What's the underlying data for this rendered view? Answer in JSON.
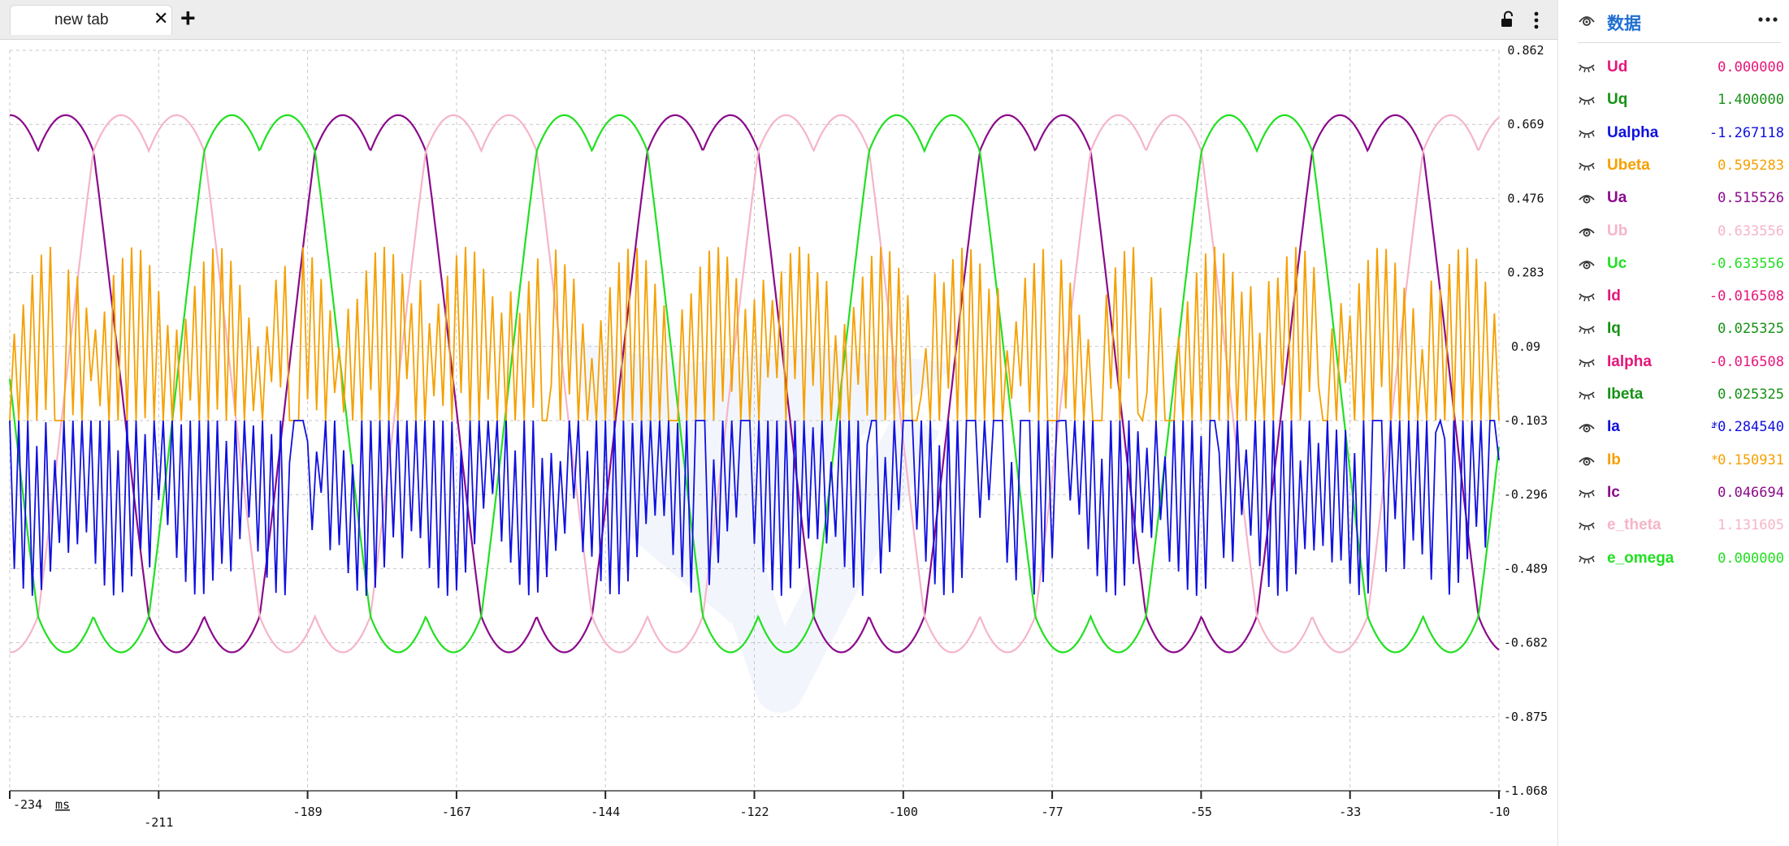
{
  "tab": {
    "label": "new tab",
    "close_glyph": "✕",
    "add_glyph": "+"
  },
  "toolbar": {
    "lock_icon": "unlock-icon",
    "more_icon": "more-vertical-icon"
  },
  "panel": {
    "title": "数据",
    "header_icon": "eye-open-icon",
    "more_icon": "more-horizontal-icon",
    "variables": [
      {
        "name": "Ud",
        "value": "0.000000",
        "color": "#e6157a",
        "visible": false,
        "mark": ""
      },
      {
        "name": "Uq",
        "value": "1.400000",
        "color": "#169116",
        "visible": false,
        "mark": ""
      },
      {
        "name": "Ualpha",
        "value": "-1.267118",
        "color": "#1010e0",
        "visible": false,
        "mark": ""
      },
      {
        "name": "Ubeta",
        "value": "0.595283",
        "color": "#f5a000",
        "visible": false,
        "mark": ""
      },
      {
        "name": "Ua",
        "value": "0.515526",
        "color": "#8b0a8b",
        "visible": true,
        "mark": ""
      },
      {
        "name": "Ub",
        "value": "0.633556",
        "color": "#f5b5c8",
        "visible": true,
        "mark": ""
      },
      {
        "name": "Uc",
        "value": "-0.633556",
        "color": "#21e021",
        "visible": true,
        "mark": ""
      },
      {
        "name": "Id",
        "value": "-0.016508",
        "color": "#e6157a",
        "visible": false,
        "mark": ""
      },
      {
        "name": "Iq",
        "value": "0.025325",
        "color": "#169116",
        "visible": false,
        "mark": ""
      },
      {
        "name": "Ialpha",
        "value": "-0.016508",
        "color": "#e6157a",
        "visible": false,
        "mark": ""
      },
      {
        "name": "Ibeta",
        "value": "0.025325",
        "color": "#169116",
        "visible": false,
        "mark": ""
      },
      {
        "name": "Ia",
        "value": "-0.284540",
        "color": "#1010e0",
        "visible": true,
        "mark": "*"
      },
      {
        "name": "Ib",
        "value": "0.150931",
        "color": "#f5a000",
        "visible": true,
        "mark": "*"
      },
      {
        "name": "Ic",
        "value": "0.046694",
        "color": "#8b0a8b",
        "visible": false,
        "mark": ""
      },
      {
        "name": "e_theta",
        "value": "1.131605",
        "color": "#f5b5c8",
        "visible": false,
        "mark": ""
      },
      {
        "name": "e_omega",
        "value": "0.000000",
        "color": "#21e021",
        "visible": false,
        "mark": ""
      }
    ]
  },
  "chart_data": {
    "type": "line",
    "x_unit": "ms",
    "xlim": [
      -234,
      -10
    ],
    "x_ticks": [
      "-234",
      "-211",
      "-189",
      "-167",
      "-144",
      "-122",
      "-100",
      "-77",
      "-55",
      "-33",
      "-10"
    ],
    "ylim": [
      -1.068,
      0.862
    ],
    "y_ticks": [
      "0.862",
      "0.669",
      "0.476",
      "0.283",
      "0.09",
      "-0.103",
      "-0.296",
      "-0.489",
      "-0.682",
      "-0.875",
      "-1.068"
    ],
    "grid": true,
    "electrical_period_ms": 50,
    "series": [
      {
        "name": "Ua",
        "color": "#8b0a8b",
        "kind": "svpwm_phase",
        "amplitude": 0.7,
        "phase_offset_deg": 0
      },
      {
        "name": "Ub",
        "color": "#f5b5c8",
        "kind": "svpwm_phase",
        "amplitude": 0.7,
        "phase_offset_deg": -120
      },
      {
        "name": "Uc",
        "color": "#21e021",
        "kind": "svpwm_phase",
        "amplitude": 0.7,
        "phase_offset_deg": 120
      },
      {
        "name": "Ib",
        "color": "#f5a000",
        "kind": "pulse_current",
        "baseline": -0.103,
        "extreme": 0.35
      },
      {
        "name": "Ia",
        "color": "#1010e0",
        "kind": "pulse_current",
        "baseline": -0.103,
        "extreme": -0.56
      }
    ]
  }
}
